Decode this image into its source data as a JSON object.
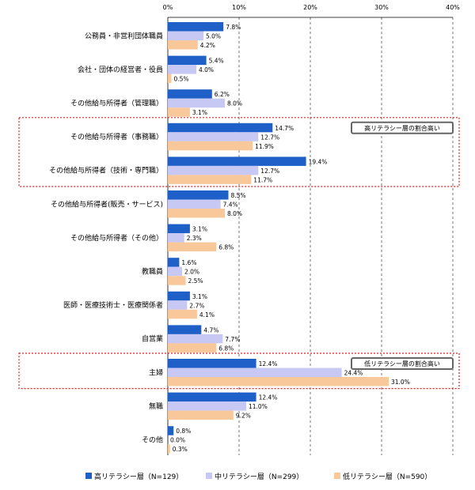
{
  "chart_data": {
    "type": "bar",
    "orientation": "horizontal",
    "x_ticks": [
      "0%",
      "10%",
      "20%",
      "30%",
      "40%"
    ],
    "xlim": [
      0,
      40
    ],
    "grid": "vertical-dashed",
    "legend_position": "bottom",
    "categories": [
      "公務員・非営利団体職員",
      "会社・団体の経営者・役員",
      "その他給与所得者（管理職）",
      "その他給与所得者（事務職）",
      "その他給与所得者（技術・専門職）",
      "その他給与所得者(販売・サービス)",
      "その他給与所得者（その他）",
      "教職員",
      "医師・医療技術士・医療関係者",
      "自営業",
      "主婦",
      "無職",
      "その他"
    ],
    "series": [
      {
        "name": "高リテラシー層（N=129）",
        "color": "#1f5fc8",
        "values": [
          7.8,
          5.4,
          6.2,
          14.7,
          19.4,
          8.5,
          3.1,
          1.6,
          3.1,
          4.7,
          12.4,
          12.4,
          0.8
        ],
        "labels": [
          "7.8%",
          "5.4%",
          "6.2%",
          "14.7%",
          "19.4%",
          "8.5%",
          "3.1%",
          "1.6%",
          "3.1%",
          "4.7%",
          "12.4%",
          "12.4%",
          "0.8%"
        ]
      },
      {
        "name": "中リテラシー層（N=299）",
        "color": "#c8c8f4",
        "values": [
          5.0,
          4.0,
          8.0,
          12.7,
          12.7,
          7.4,
          2.3,
          2.0,
          2.7,
          7.7,
          24.4,
          11.0,
          0.0
        ],
        "labels": [
          "5.0%",
          "4.0%",
          "8.0%",
          "12.7%",
          "12.7%",
          "7.4%",
          "2.3%",
          "2.0%",
          "2.7%",
          "7.7%",
          "24.4%",
          "11.0%",
          "0.0%"
        ]
      },
      {
        "name": "低リテラシー層（N=590）",
        "color": "#f8c89a",
        "values": [
          4.2,
          0.5,
          3.1,
          11.9,
          11.7,
          8.0,
          6.8,
          2.5,
          4.1,
          6.8,
          31.0,
          9.2,
          0.3
        ],
        "labels": [
          "4.2%",
          "0.5%",
          "3.1%",
          "11.9%",
          "11.7%",
          "8.0%",
          "6.8%",
          "2.5%",
          "4.1%",
          "6.8%",
          "31.0%",
          "9.2%",
          "0.3%"
        ]
      }
    ],
    "annotations": [
      {
        "text": "高リテラシー層の割合高い",
        "categories": [
          3,
          4
        ],
        "frame_color": "#e02020"
      },
      {
        "text": "低リテラシー層の割合高い",
        "categories": [
          10
        ],
        "frame_color": "#e02020"
      }
    ]
  }
}
